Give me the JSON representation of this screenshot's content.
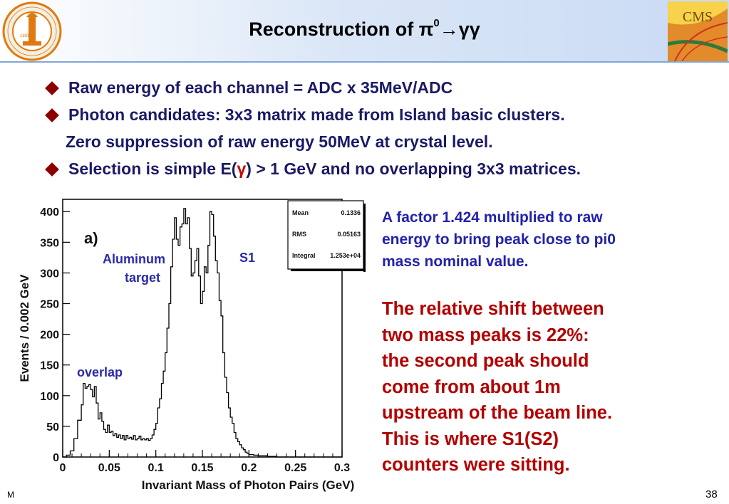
{
  "slide": {
    "title": "Reconstruction of π",
    "title_sup": "0",
    "title_suffix": "→γγ",
    "logo_left": {
      "outer_text": "CALIFORNIA INSTITUTE OF TECHNOLOGY",
      "year": "1891"
    },
    "logo_right": {
      "text": "CMS"
    },
    "bullets": [
      {
        "text": "Raw energy of each channel = ADC x 35MeV/ADC"
      },
      {
        "text": "Photon candidates: 3x3 matrix made from Island basic clusters."
      },
      {
        "text": "Zero suppression of raw energy 50MeV at crystal level."
      },
      {
        "pre": "Selection is simple E(",
        "gamma": "γ",
        "post": ") > 1 GeV and no overlapping 3x3 matrices."
      }
    ],
    "blue_note": [
      "A factor 1.424 multiplied to raw",
      "energy to bring peak close to pi0",
      "mass nominal value."
    ],
    "red_note": [
      "The relative shift between",
      "two mass peaks is  22%:",
      "the second peak should",
      "come from about 1m",
      "upstream of the beam line.",
      "This is where S1(S2)",
      "counters were sitting."
    ],
    "footer_m": "M",
    "page_number": "38"
  },
  "chart_data": {
    "type": "line",
    "panel_label": "a)",
    "xlabel": "Invariant Mass of Photon Pairs (GeV)",
    "ylabel": "Events / 0.002 GeV",
    "xlim": [
      0,
      0.3
    ],
    "ylim": [
      0,
      420
    ],
    "xticks": [
      "0",
      "0.05",
      "0.1",
      "0.15",
      "0.2",
      "0.25",
      "0.3"
    ],
    "yticks": [
      "0",
      "50",
      "100",
      "150",
      "200",
      "250",
      "300",
      "350",
      "400"
    ],
    "stats": [
      {
        "label": "Mean",
        "value": "0.1336"
      },
      {
        "label": "RMS",
        "value": "0.05163"
      },
      {
        "label": "Integral",
        "value": "1.253e+04"
      }
    ],
    "annotations": {
      "aluminum_1": "Aluminum",
      "aluminum_2": "target",
      "s1": "S1",
      "overlap": "overlap"
    },
    "series": [
      {
        "x": [
          0.004,
          0.008,
          0.012,
          0.016,
          0.02,
          0.022,
          0.024,
          0.026,
          0.028,
          0.03,
          0.032,
          0.034,
          0.036,
          0.038,
          0.04,
          0.042,
          0.044,
          0.046,
          0.048,
          0.05,
          0.052,
          0.054,
          0.056,
          0.058,
          0.06,
          0.062,
          0.064,
          0.066,
          0.068,
          0.07,
          0.072,
          0.074,
          0.076,
          0.078,
          0.08,
          0.082,
          0.084,
          0.086,
          0.088,
          0.09,
          0.092,
          0.094,
          0.096,
          0.098,
          0.1,
          0.102,
          0.104,
          0.106,
          0.108,
          0.11,
          0.112,
          0.114,
          0.116,
          0.118,
          0.12,
          0.122,
          0.124,
          0.126,
          0.128,
          0.13,
          0.132,
          0.134,
          0.136,
          0.138,
          0.14,
          0.142,
          0.144,
          0.146,
          0.148,
          0.15,
          0.152,
          0.154,
          0.156,
          0.158,
          0.16,
          0.162,
          0.164,
          0.166,
          0.168,
          0.17,
          0.172,
          0.174,
          0.176,
          0.178,
          0.18,
          0.182,
          0.184,
          0.186,
          0.188,
          0.19,
          0.192,
          0.194,
          0.196,
          0.198,
          0.2,
          0.205,
          0.21,
          0.22,
          0.23,
          0.24,
          0.25,
          0.26,
          0.27,
          0.28,
          0.29,
          0.3
        ],
        "y": [
          0,
          3,
          10,
          30,
          60,
          85,
          120,
          112,
          115,
          118,
          110,
          98,
          115,
          88,
          62,
          72,
          58,
          45,
          40,
          52,
          40,
          42,
          35,
          38,
          32,
          36,
          30,
          35,
          28,
          35,
          30,
          32,
          29,
          35,
          28,
          30,
          34,
          28,
          30,
          28,
          30,
          27,
          30,
          36,
          45,
          55,
          80,
          95,
          120,
          140,
          170,
          210,
          250,
          310,
          355,
          390,
          355,
          345,
          375,
          380,
          405,
          380,
          390,
          340,
          295,
          300,
          320,
          340,
          295,
          250,
          270,
          310,
          300,
          345,
          400,
          395,
          360,
          320,
          300,
          255,
          230,
          170,
          130,
          105,
          80,
          65,
          55,
          40,
          30,
          25,
          20,
          15,
          12,
          8,
          6,
          4,
          3,
          2,
          1,
          0,
          0,
          0,
          0,
          0,
          0,
          0
        ]
      }
    ]
  }
}
